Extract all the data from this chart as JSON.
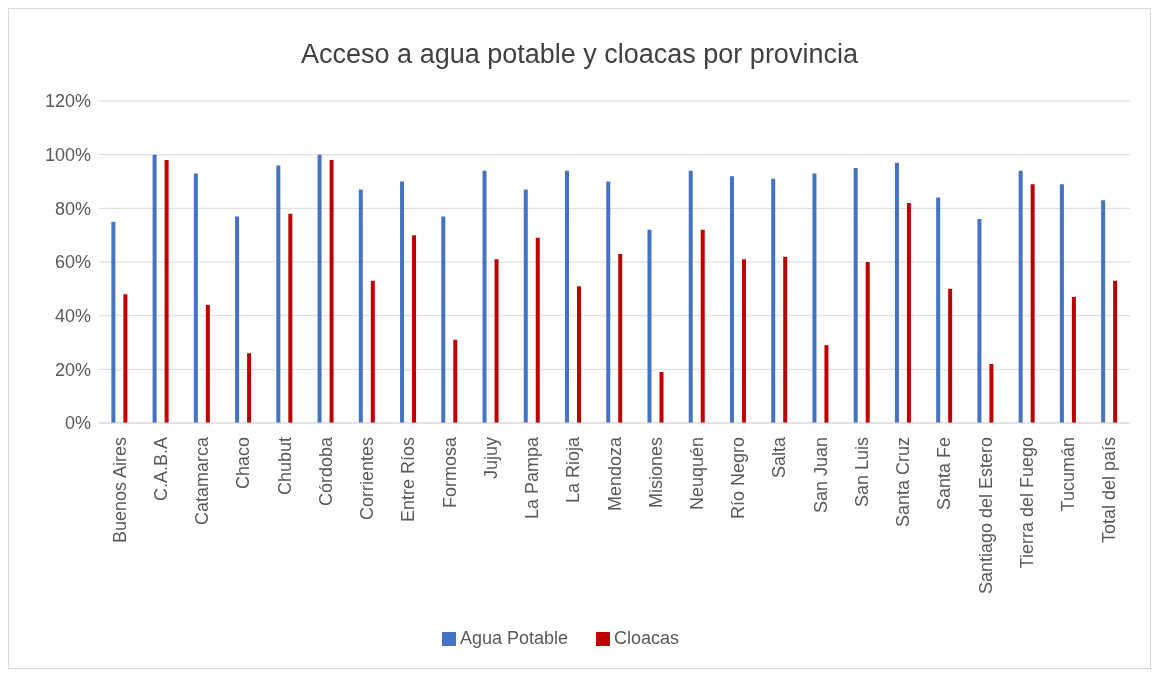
{
  "chart_data": {
    "type": "bar",
    "title": "Acceso a agua potable y cloacas por provincia",
    "categories": [
      "Buenos Aires",
      "C.A.B.A",
      "Catamarca",
      "Chaco",
      "Chubut",
      "Córdoba",
      "Corrientes",
      "Entre Ríos",
      "Formosa",
      "Jujuy",
      "La Pampa",
      "La Rioja",
      "Mendoza",
      "Misiones",
      "Neuquén",
      "Río Negro",
      "Salta",
      "San Juan",
      "San Luis",
      "Santa Cruz",
      "Santa Fe",
      "Santiago del Estero",
      "Tierra del Fuego",
      "Tucumán",
      "Total del país"
    ],
    "series": [
      {
        "name": "Agua Potable",
        "color": "#4472c4",
        "values": [
          75,
          100,
          93,
          77,
          96,
          100,
          87,
          90,
          77,
          94,
          87,
          94,
          90,
          72,
          94,
          92,
          91,
          93,
          95,
          97,
          84,
          76,
          94,
          89,
          83
        ]
      },
      {
        "name": "Cloacas",
        "color": "#c00000",
        "values": [
          48,
          98,
          44,
          26,
          78,
          98,
          53,
          70,
          31,
          61,
          69,
          51,
          63,
          19,
          72,
          61,
          62,
          29,
          60,
          82,
          50,
          22,
          89,
          47,
          53
        ]
      }
    ],
    "ylim": [
      0,
      120
    ],
    "yticks": [
      {
        "value": 0,
        "label": "0%"
      },
      {
        "value": 20,
        "label": "20%"
      },
      {
        "value": 40,
        "label": "40%"
      },
      {
        "value": 60,
        "label": "60%"
      },
      {
        "value": 80,
        "label": "80%"
      },
      {
        "value": 100,
        "label": "100%"
      },
      {
        "value": 120,
        "label": "120%"
      }
    ],
    "grid": "y",
    "legend": "bottom"
  }
}
